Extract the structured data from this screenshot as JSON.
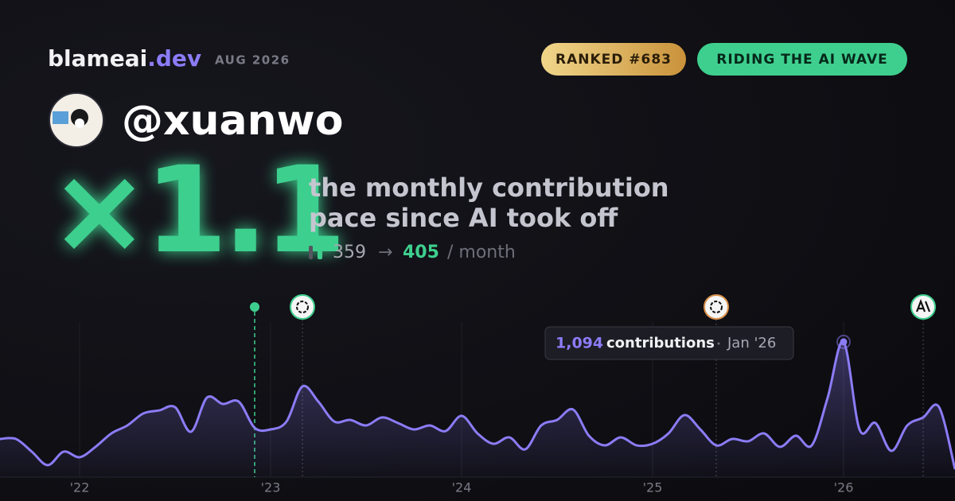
{
  "header": {
    "brand": "blameai",
    "brand_suffix": ".dev",
    "date": "AUG 2026",
    "badges": [
      "RANKED #683",
      "RIDING THE AI WAVE"
    ]
  },
  "profile": {
    "handle": "@xuanwo"
  },
  "headline": {
    "multiplier": "×1.1",
    "description": [
      "the monthly contribution",
      "pace since AI took off"
    ],
    "before": "359",
    "arrow": "→",
    "after": "405",
    "unit": "/ month"
  },
  "chart_data": {
    "type": "line",
    "categories": [
      null,
      null,
      null,
      null,
      null,
      "'22",
      null,
      null,
      null,
      null,
      null,
      null,
      null,
      null,
      null,
      null,
      null,
      "'23",
      null,
      null,
      null,
      null,
      null,
      null,
      null,
      null,
      null,
      null,
      null,
      "'24",
      null,
      null,
      null,
      null,
      null,
      null,
      null,
      null,
      null,
      null,
      null,
      "'25",
      null,
      null,
      null,
      null,
      null,
      null,
      null,
      null,
      null,
      null,
      null,
      "'26",
      null,
      null,
      null,
      null,
      null,
      null,
      null
    ],
    "series": [
      {
        "name": "contributions",
        "color": "#8b7cf6",
        "values": [
          309,
          309,
          206,
          97,
          206,
          161,
          245,
          354,
          418,
          515,
          540,
          566,
          367,
          643,
          592,
          611,
          399,
          386,
          450,
          734,
          611,
          450,
          463,
          418,
          483,
          438,
          386,
          418,
          373,
          496,
          354,
          270,
          322,
          225,
          418,
          463,
          547,
          335,
          257,
          322,
          257,
          270,
          354,
          502,
          386,
          257,
          309,
          290,
          354,
          245,
          335,
          257,
          643,
          1094,
          386,
          438,
          212,
          418,
          483,
          566,
          64
        ]
      }
    ],
    "ylim": [
      0,
      1100
    ],
    "event_markers": [
      16,
      19,
      45,
      58
    ],
    "tooltip": {
      "value_label": "1,094",
      "unit": "contributions",
      "category": "Jan '26"
    }
  }
}
